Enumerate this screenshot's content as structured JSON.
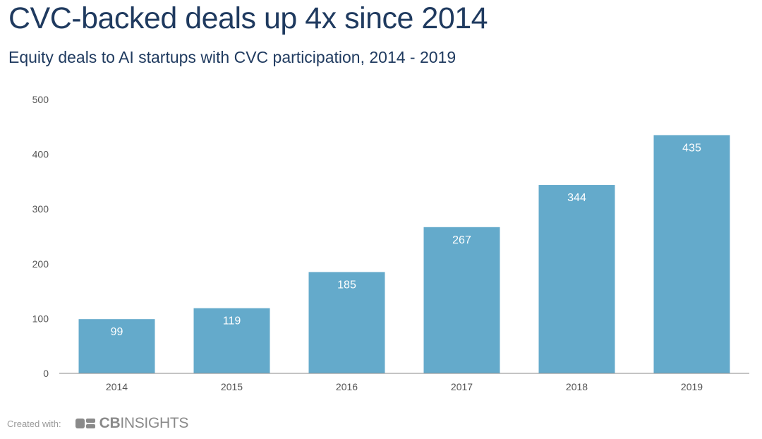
{
  "header": {
    "title": "CVC-backed deals up 4x since 2014",
    "subtitle": "Equity deals to AI startups with CVC participation, 2014 - 2019"
  },
  "chart_data": {
    "type": "bar",
    "title": "CVC-backed deals up 4x since 2014",
    "subtitle": "Equity deals to AI startups with CVC participation, 2014 - 2019",
    "categories": [
      "2014",
      "2015",
      "2016",
      "2017",
      "2018",
      "2019"
    ],
    "values": [
      99,
      119,
      185,
      267,
      344,
      435
    ],
    "ylim": [
      0,
      500
    ],
    "yticks": [
      0,
      100,
      200,
      300,
      400,
      500
    ],
    "xlabel": "",
    "ylabel": "",
    "bar_color": "#64aacb",
    "grid": false,
    "data_labels": true
  },
  "footer": {
    "created_with": "Created with:",
    "brand_bold": "CB",
    "brand_rest": "INSIGHTS"
  },
  "colors": {
    "title": "#1f3a5f",
    "bar": "#64aacb",
    "axis": "#888888"
  }
}
